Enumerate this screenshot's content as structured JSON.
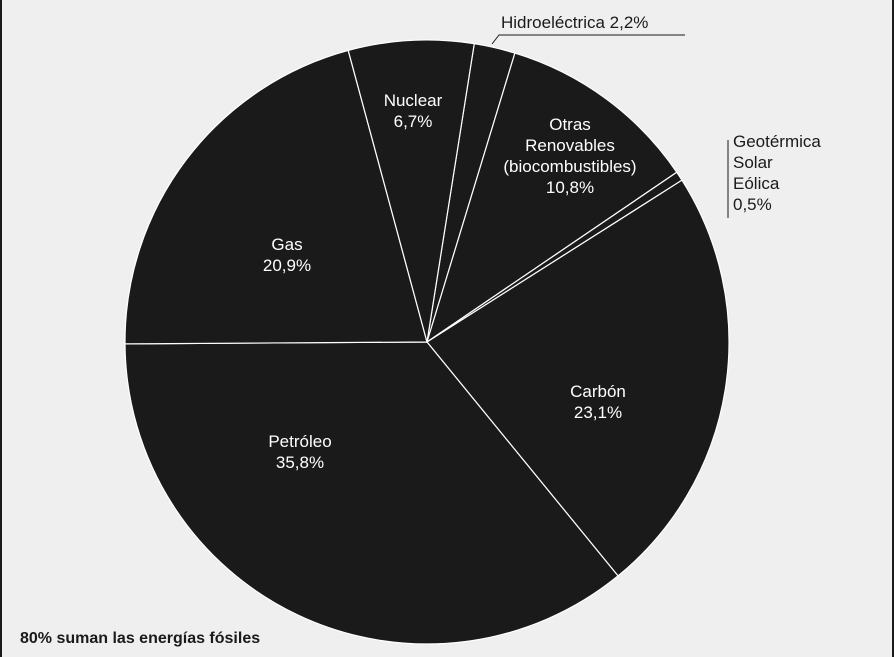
{
  "chart_data": {
    "type": "pie",
    "title": "",
    "slices": [
      {
        "name": "Hidroeléctrica",
        "value": 2.2,
        "label": [
          "Hidroeléctrica 2,2%"
        ]
      },
      {
        "name": "Otras Renovables (biocombustibles)",
        "value": 10.8,
        "label": [
          "Otras",
          "Renovables",
          "(biocombustibles)",
          "10,8%"
        ]
      },
      {
        "name": "Geotérmica Solar Eólica",
        "value": 0.5,
        "label": [
          "Geotérmica",
          "Solar",
          "Eólica",
          "0,5%"
        ]
      },
      {
        "name": "Carbón",
        "value": 23.1,
        "label": [
          "Carbón",
          "23,1%"
        ]
      },
      {
        "name": "Petróleo",
        "value": 35.8,
        "label": [
          "Petróleo",
          "35,8%"
        ]
      },
      {
        "name": "Gas",
        "value": 20.9,
        "label": [
          "Gas",
          "20,9%"
        ]
      },
      {
        "name": "Nuclear",
        "value": 6.7,
        "label": [
          "Nuclear",
          "6,7%"
        ]
      }
    ],
    "colors": {
      "fill": "#1a1a1a",
      "separator": "#ffffff",
      "background": "#efefef"
    }
  },
  "footnote": "80% suman las energías fósiles"
}
